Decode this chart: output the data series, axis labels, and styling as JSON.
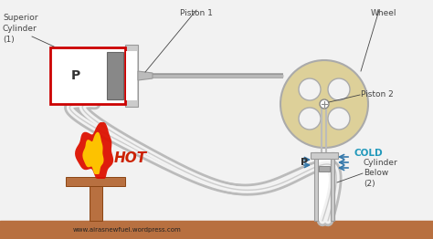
{
  "bg_color": "#f2f2f2",
  "watermark": "www.airasnewfuel.wordpress.com",
  "labels": {
    "superior_cylinder": "Superior\nCylinder\n(1)",
    "piston1": "Piston 1",
    "wheel": "Wheel",
    "piston2": "Piston 2",
    "hot": "HOT",
    "cold": "COLD",
    "cylinder_below": "Cylinder\nBelow\n(2)",
    "P_left": "P",
    "P_right": "P"
  },
  "colors": {
    "cylinder_border": "#cc0000",
    "cylinder_fill": "#ffffff",
    "piston_fill": "#888888",
    "piston_dark": "#666666",
    "rod_color": "#aaaaaa",
    "rod_dark": "#999999",
    "wheel_fill": "#ddd099",
    "wheel_border": "#aaaaaa",
    "wheel_hole": "#f2f2f2",
    "hot_text": "#cc2200",
    "cold_text": "#2299bb",
    "arrow_red": "#cc0000",
    "arrow_blue": "#3377aa",
    "ground_color": "#b87040",
    "wood_color": "#b87040",
    "label_line": "#888888",
    "tube_color": "#cccccc",
    "tube_inner": "#f2f2f2",
    "connector_fill": "#cccccc"
  }
}
